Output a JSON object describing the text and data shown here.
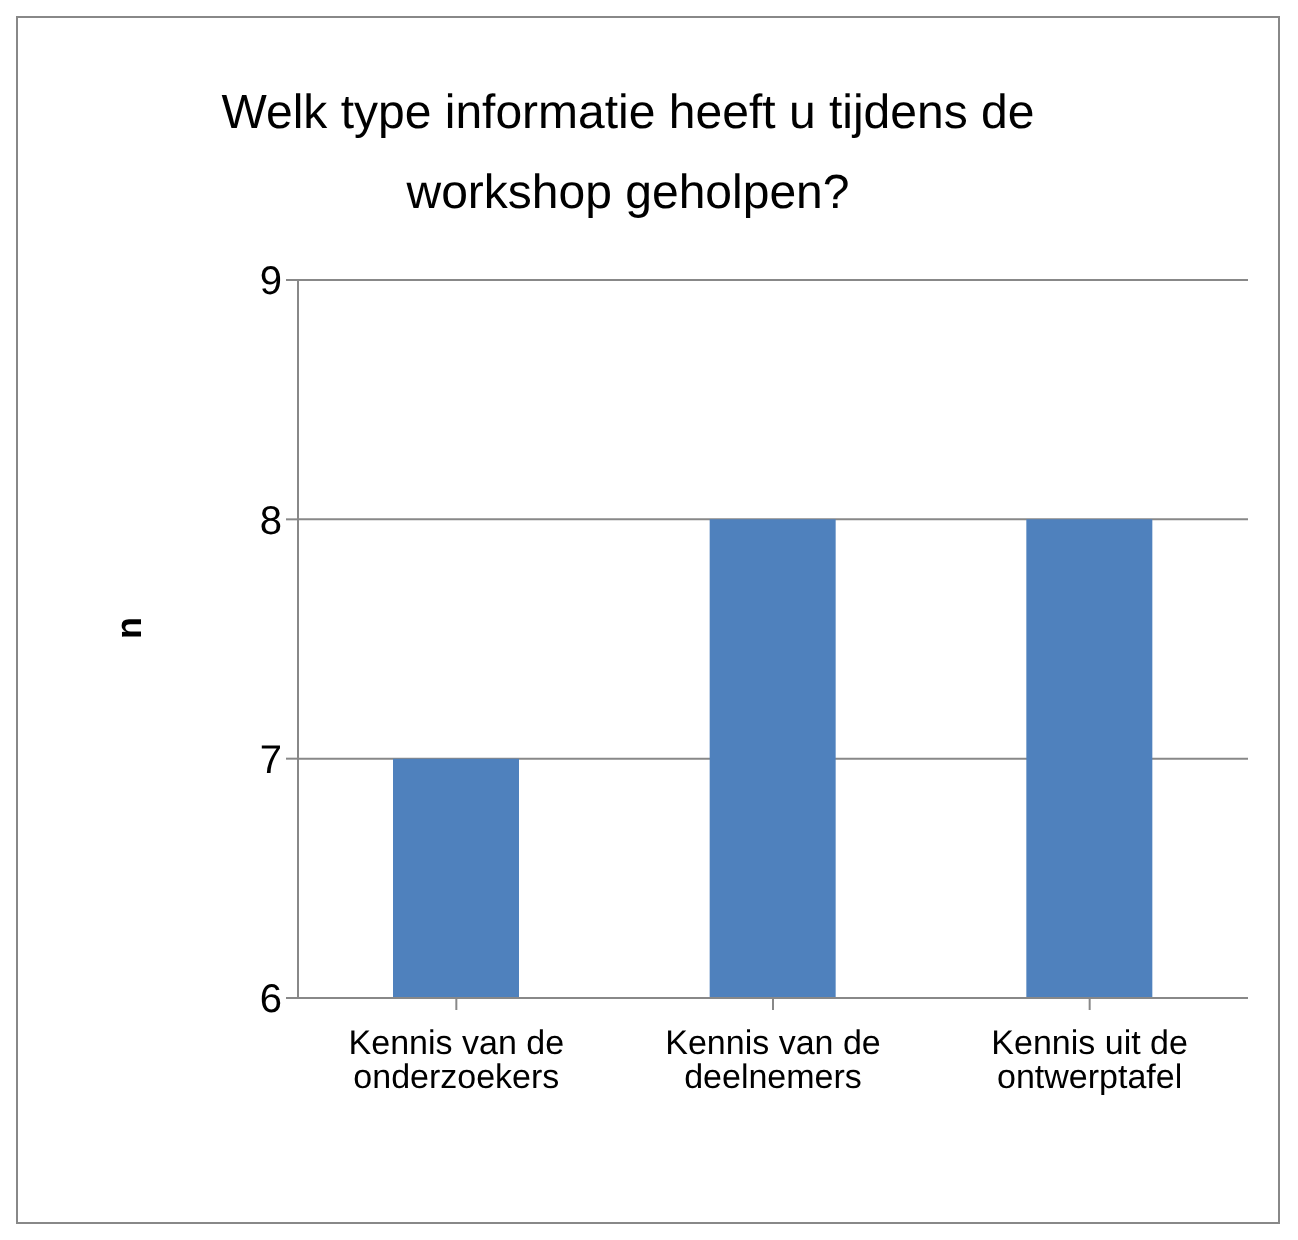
{
  "chart_data": {
    "type": "bar",
    "title": "Welk type informatie heeft u tijdens de workshop geholpen?",
    "ylabel": "n",
    "categories": [
      "Kennis van de onderzoekers",
      "Kennis van de deelnemers",
      "Kennis uit de ontwerptafel"
    ],
    "values": [
      7,
      8,
      8
    ],
    "color": "#4f81bd",
    "ylim": [
      6,
      9
    ],
    "yticks": [
      6,
      7,
      8,
      9
    ],
    "grid": "y"
  }
}
